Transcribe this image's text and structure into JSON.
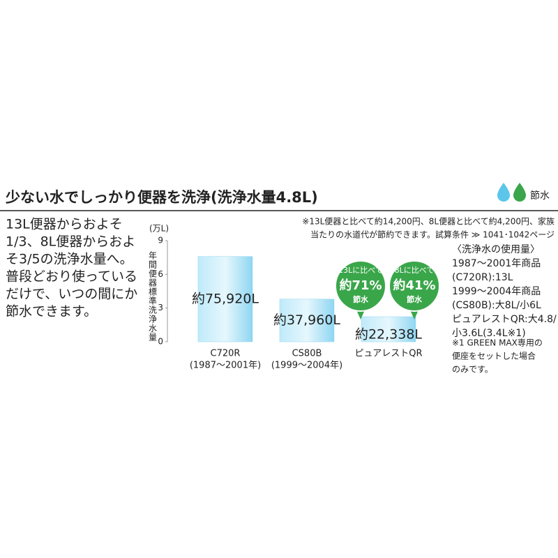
{
  "header": {
    "title": "少ない水でしっかり便器を洗浄(洗浄水量4.8L)",
    "badge": "節水"
  },
  "intro": [
    "13L便器からおよそ",
    "1/3、8L便器からおよ",
    "そ3/5の洗浄水量へ。",
    "普段どおり使っている",
    "だけで、いつの間にか",
    "節水できます。"
  ],
  "note": [
    "※13L便器と比べて約14,200円、8L便器と比べて約4,200円、家族",
    "当たりの水道代が節約できます。試算条件 ≫ 1041･1042ページ"
  ],
  "side": [
    "〈洗浄水の使用量〉",
    "1987〜2001年商品",
    "(C720R):13L",
    "1999〜2004年商品",
    "(CS80B):大8L/小6L",
    "ピュアレストQR:大4.8/",
    "小3.6L(3.4L※1)"
  ],
  "footnote": [
    "※1 GREEN MAX専用の",
    "便座をセットした場合",
    "のみです。"
  ],
  "chart_data": {
    "type": "bar",
    "y_unit": "(万L)",
    "y_label": "年間便器標準洗浄水量",
    "categories": [
      "C720R",
      "CS80B",
      "ピュアレストQR"
    ],
    "category_sublabels": [
      "(1987〜2001年)",
      "(1999〜2004年)",
      null
    ],
    "values": [
      7.592,
      3.796,
      2.2338
    ],
    "value_labels": [
      "約75,920L",
      "約37,960L",
      "約22,338L"
    ],
    "color": "#8fd6f2",
    "ylim": [
      0,
      9
    ],
    "yticks": [
      0,
      3,
      6,
      9
    ],
    "callouts": [
      [
        "13Lに比べて",
        "約71%",
        "節水"
      ],
      [
        "8Lに比べて",
        "約41%",
        "節水"
      ]
    ],
    "callout_color": "#3aa64a"
  }
}
